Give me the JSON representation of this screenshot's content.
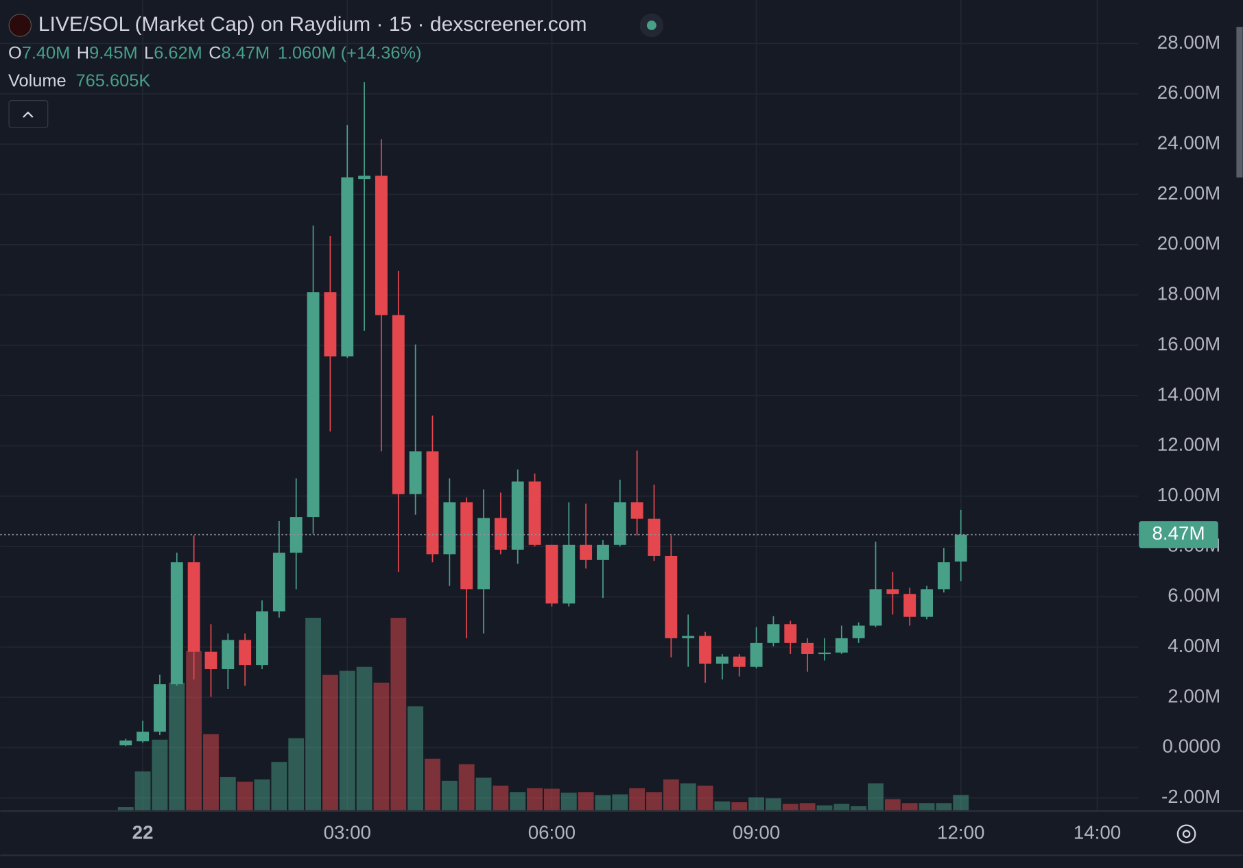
{
  "chart_data": {
    "type": "candlestick",
    "title": "LIVE/SOL (Market Cap) on Raydium · 15 · dexscreener.com",
    "legend": {
      "open_key": "O",
      "open": "7.40M",
      "high_key": "H",
      "high": "9.45M",
      "low_key": "L",
      "low": "6.62M",
      "close_key": "C",
      "close": "8.47M",
      "change": "1.060M (+14.36%)",
      "volume_key": "Volume",
      "volume": "765.605K"
    },
    "x": [
      -0.25,
      0,
      0.25,
      0.5,
      0.75,
      1,
      1.25,
      1.5,
      1.75,
      2,
      2.25,
      2.5,
      2.75,
      3,
      3.25,
      3.5,
      3.75,
      4,
      4.25,
      4.5,
      4.75,
      5,
      5.25,
      5.5,
      5.75,
      6,
      6.25,
      6.5,
      6.75,
      7,
      7.25,
      7.5,
      7.75,
      8,
      8.25,
      8.5,
      8.75,
      9,
      9.25,
      9.5,
      9.75,
      10,
      10.25,
      10.5,
      10.75,
      11,
      11.25,
      11.5,
      11.75,
      12
    ],
    "open": [
      90000,
      250000,
      630000,
      2520000,
      7370000,
      3810000,
      3120000,
      4280000,
      3280000,
      5420000,
      7750000,
      9170000,
      18110000,
      15560000,
      22610000,
      22740000,
      17200000,
      10080000,
      11780000,
      7690000,
      9760000,
      6300000,
      9130000,
      7870000,
      10580000,
      8060000,
      5730000,
      8060000,
      7460000,
      8060000,
      9760000,
      9100000,
      7620000,
      4350000,
      4440000,
      3340000,
      3620000,
      3210000,
      4160000,
      4910000,
      4160000,
      3720000,
      3780000,
      4350000,
      4850000,
      6300000,
      6110000,
      5200000,
      6300000,
      7400000
    ],
    "high": [
      350000,
      1070000,
      2900000,
      7750000,
      8440000,
      4910000,
      4540000,
      4540000,
      5860000,
      9010000,
      10710000,
      20760000,
      20350000,
      24760000,
      26460000,
      24190000,
      18960000,
      16030000,
      13200000,
      10710000,
      9950000,
      10270000,
      10140000,
      11060000,
      10900000,
      8060000,
      9760000,
      9700000,
      8250000,
      10650000,
      11810000,
      10460000,
      8440000,
      5290000,
      4600000,
      3720000,
      3720000,
      4790000,
      5230000,
      5040000,
      4350000,
      4350000,
      4850000,
      4980000,
      8190000,
      6990000,
      6360000,
      6430000,
      7940000,
      9450000
    ],
    "low": [
      60000,
      190000,
      500000,
      2460000,
      2710000,
      2020000,
      2330000,
      2460000,
      3120000,
      5170000,
      6300000,
      8500000,
      12570000,
      15500000,
      16570000,
      11780000,
      6990000,
      9260000,
      7370000,
      6430000,
      4350000,
      4540000,
      7690000,
      7310000,
      8000000,
      5610000,
      5610000,
      7120000,
      5950000,
      8000000,
      8440000,
      7430000,
      3590000,
      3210000,
      2580000,
      2710000,
      2830000,
      3150000,
      4030000,
      3720000,
      3020000,
      3460000,
      3720000,
      4160000,
      4790000,
      5290000,
      4850000,
      5100000,
      6170000,
      6620000
    ],
    "close": [
      280000,
      630000,
      2520000,
      7370000,
      3810000,
      3120000,
      4280000,
      3280000,
      5420000,
      7750000,
      9170000,
      18110000,
      15560000,
      22680000,
      22740000,
      17200000,
      10080000,
      11780000,
      7690000,
      9760000,
      6300000,
      9130000,
      7870000,
      10580000,
      8060000,
      5730000,
      8060000,
      7460000,
      8060000,
      9760000,
      9100000,
      7620000,
      4350000,
      4440000,
      3340000,
      3620000,
      3210000,
      4160000,
      4910000,
      4160000,
      3720000,
      3780000,
      4350000,
      4850000,
      6300000,
      6110000,
      5200000,
      6300000,
      7370000,
      8470000
    ],
    "volume": [
      190000,
      1900000,
      3430000,
      6170000,
      7690000,
      3690000,
      1640000,
      1410000,
      1520000,
      2360000,
      3500000,
      9290000,
      6550000,
      6740000,
      6930000,
      6170000,
      9290000,
      5030000,
      2510000,
      1450000,
      2250000,
      1600000,
      1220000,
      910000,
      1100000,
      1070000,
      880000,
      910000,
      760000,
      800000,
      1100000,
      910000,
      1520000,
      1330000,
      1220000,
      460000,
      420000,
      650000,
      610000,
      340000,
      380000,
      270000,
      340000,
      230000,
      1330000,
      570000,
      380000,
      380000,
      380000,
      765605
    ],
    "volume_ylim": [
      0,
      39000000
    ],
    "up_color": "#48a088",
    "down_color": "#e4484e",
    "xlim": [
      -2.09,
      14.6
    ],
    "xticks": [
      {
        "value": 0,
        "label": "22"
      },
      {
        "value": 3,
        "label": "03:00"
      },
      {
        "value": 6,
        "label": "06:00"
      },
      {
        "value": 9,
        "label": "09:00"
      },
      {
        "value": 12,
        "label": "12:00"
      },
      {
        "value": 14,
        "label": "14:00"
      }
    ],
    "ylim": [
      -2520000,
      29730000
    ],
    "yticks": [
      {
        "value": -2000000,
        "label": "-2.00M"
      },
      {
        "value": 0,
        "label": "0.0000"
      },
      {
        "value": 2000000,
        "label": "2.00M"
      },
      {
        "value": 4000000,
        "label": "4.00M"
      },
      {
        "value": 6000000,
        "label": "6.00M"
      },
      {
        "value": 8000000,
        "label": "8.00M"
      },
      {
        "value": 10000000,
        "label": "10.00M"
      },
      {
        "value": 12000000,
        "label": "12.00M"
      },
      {
        "value": 14000000,
        "label": "14.00M"
      },
      {
        "value": 16000000,
        "label": "16.00M"
      },
      {
        "value": 18000000,
        "label": "18.00M"
      },
      {
        "value": 20000000,
        "label": "20.00M"
      },
      {
        "value": 22000000,
        "label": "22.00M"
      },
      {
        "value": 24000000,
        "label": "24.00M"
      },
      {
        "value": 26000000,
        "label": "26.00M"
      },
      {
        "value": 28000000,
        "label": "28.00M"
      }
    ],
    "grid": true,
    "last_price": {
      "value": 8470000,
      "label": "8.47M"
    }
  }
}
